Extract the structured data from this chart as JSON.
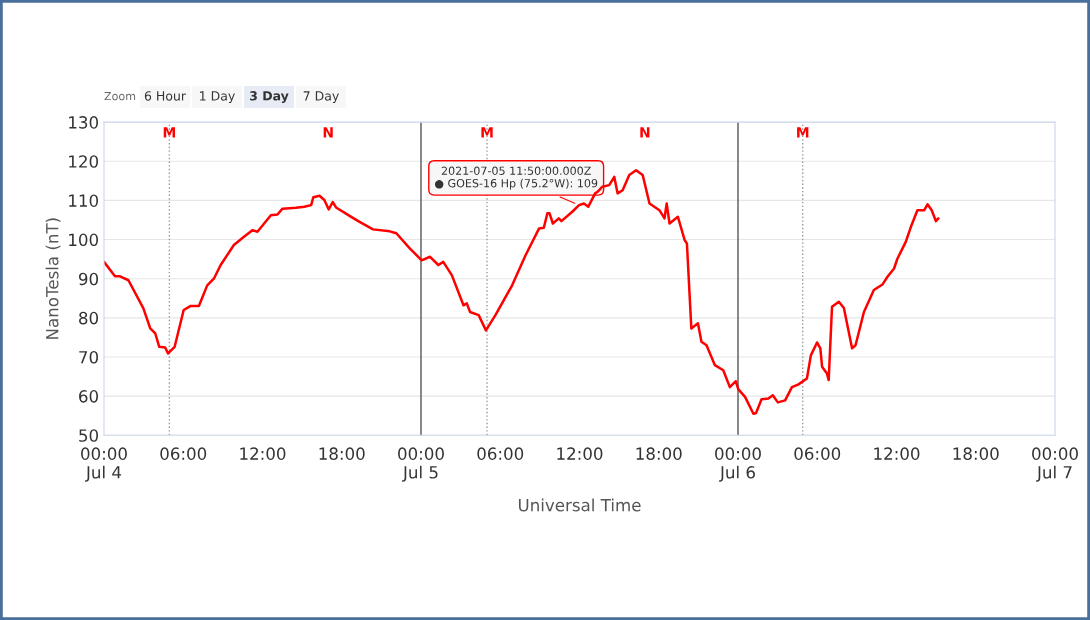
{
  "chart_data": {
    "type": "line",
    "xlabel": "Universal Time",
    "ylabel": "NanoTesla (nT)",
    "x": [
      "2021-07-04T00:00",
      "2021-07-04T00:50",
      "2021-07-04T01:13",
      "2021-07-04T01:51",
      "2021-07-04T02:59",
      "2021-07-04T03:30",
      "2021-07-04T03:53",
      "2021-07-04T04:11",
      "2021-07-04T04:38",
      "2021-07-04T04:51",
      "2021-07-04T05:21",
      "2021-07-04T06:02",
      "2021-07-04T06:32",
      "2021-07-04T07:11",
      "2021-07-04T07:49",
      "2021-07-04T08:19",
      "2021-07-04T08:50",
      "2021-07-04T09:50",
      "2021-07-04T10:36",
      "2021-07-04T11:14",
      "2021-07-04T11:37",
      "2021-07-04T12:38",
      "2021-07-04T13:08",
      "2021-07-04T13:31",
      "2021-07-04T14:32",
      "2021-07-04T15:10",
      "2021-07-04T15:41",
      "2021-07-04T15:51",
      "2021-07-04T16:19",
      "2021-07-04T16:41",
      "2021-07-04T17:01",
      "2021-07-04T17:19",
      "2021-07-04T17:34",
      "2021-07-04T18:43",
      "2021-07-04T19:21",
      "2021-07-04T20:22",
      "2021-07-04T21:38",
      "2021-07-04T22:08",
      "2021-07-04T23:10",
      "2021-07-05T00:03",
      "2021-07-05T00:41",
      "2021-07-05T01:19",
      "2021-07-05T01:41",
      "2021-07-05T02:20",
      "2021-07-05T03:13",
      "2021-07-05T03:28",
      "2021-07-05T03:43",
      "2021-07-05T04:22",
      "2021-07-05T04:55",
      "2021-07-05T05:38",
      "2021-07-05T06:54",
      "2021-07-05T07:55",
      "2021-07-05T08:56",
      "2021-07-05T09:18",
      "2021-07-05T09:34",
      "2021-07-05T09:44",
      "2021-07-05T09:59",
      "2021-07-05T10:26",
      "2021-07-05T10:38",
      "2021-07-05T11:27",
      "2021-07-05T11:58",
      "2021-07-05T12:20",
      "2021-07-05T12:40",
      "2021-07-05T13:11",
      "2021-07-05T13:22",
      "2021-07-05T13:44",
      "2021-07-05T14:15",
      "2021-07-05T14:38",
      "2021-07-05T14:53",
      "2021-07-05T15:16",
      "2021-07-05T15:46",
      "2021-07-05T16:17",
      "2021-07-05T16:47",
      "2021-07-05T17:18",
      "2021-07-05T18:03",
      "2021-07-05T18:26",
      "2021-07-05T18:36",
      "2021-07-05T18:49",
      "2021-07-05T19:27",
      "2021-07-05T19:58",
      "2021-07-05T20:08",
      "2021-07-05T20:28",
      "2021-07-05T20:58",
      "2021-07-05T21:14",
      "2021-07-05T21:37",
      "2021-07-05T22:15",
      "2021-07-05T22:53",
      "2021-07-05T23:23",
      "2021-07-05T23:50",
      "2021-07-06T00:01",
      "2021-07-06T00:32",
      "2021-07-06T01:10",
      "2021-07-06T01:22",
      "2021-07-06T01:47",
      "2021-07-06T02:18",
      "2021-07-06T02:38",
      "2021-07-06T03:01",
      "2021-07-06T03:34",
      "2021-07-06T04:05",
      "2021-07-06T04:35",
      "2021-07-06T05:13",
      "2021-07-06T05:31",
      "2021-07-06T05:59",
      "2021-07-06T06:14",
      "2021-07-06T06:22",
      "2021-07-06T06:44",
      "2021-07-06T06:52",
      "2021-07-06T07:07",
      "2021-07-06T07:38",
      "2021-07-06T08:01",
      "2021-07-06T08:38",
      "2021-07-06T08:54",
      "2021-07-06T09:32",
      "2021-07-06T10:17",
      "2021-07-06T10:56",
      "2021-07-06T11:19",
      "2021-07-06T11:49",
      "2021-07-06T12:04",
      "2021-07-06T12:42",
      "2021-07-06T13:05",
      "2021-07-06T13:35",
      "2021-07-06T14:06",
      "2021-07-06T14:21",
      "2021-07-06T14:40",
      "2021-07-06T14:59",
      "2021-07-06T15:10"
    ],
    "series": [
      {
        "color": "#ff0000",
        "values": [
          94.3,
          90.6,
          90.6,
          89.6,
          82.4,
          77.3,
          76.0,
          72.6,
          72.4,
          70.9,
          72.6,
          82.0,
          83.0,
          83.0,
          88.3,
          90.0,
          93.5,
          98.6,
          100.7,
          102.4,
          102.0,
          106.2,
          106.4,
          107.9,
          108.1,
          108.4,
          108.8,
          110.8,
          111.2,
          110.1,
          107.7,
          109.6,
          108.2,
          105.8,
          104.5,
          102.6,
          102.1,
          101.6,
          97.7,
          94.7,
          95.6,
          93.5,
          94.3,
          90.9,
          83.2,
          83.7,
          81.5,
          80.7,
          76.8,
          80.7,
          88.3,
          96.0,
          102.8,
          103.0,
          106.7,
          106.7,
          104.1,
          105.4,
          104.7,
          107.1,
          108.8,
          109.2,
          108.4,
          111.8,
          112.2,
          113.5,
          113.9,
          116.0,
          111.8,
          112.6,
          116.5,
          117.7,
          116.5,
          109.2,
          107.5,
          105.4,
          109.2,
          104.1,
          105.8,
          99.8,
          99.0,
          77.3,
          78.6,
          73.9,
          73.0,
          67.9,
          66.6,
          62.3,
          63.8,
          61.8,
          59.8,
          55.5,
          55.7,
          59.2,
          59.4,
          60.2,
          58.4,
          58.9,
          62.3,
          63.0,
          64.5,
          70.4,
          73.7,
          72.2,
          67.5,
          65.8,
          64.1,
          82.8,
          84.1,
          82.5,
          72.2,
          73.0,
          81.5,
          87.1,
          88.5,
          90.5,
          92.6,
          95.1,
          99.4,
          103.2,
          107.5,
          107.5,
          109.0,
          107.5,
          104.7,
          105.4
        ]
      }
    ],
    "xlim": [
      "2021-07-04T00:00",
      "2021-07-07T00:00"
    ],
    "xticks": [
      {
        "value": "2021-07-04T00:00",
        "label": "00:00\nJul 4"
      },
      {
        "value": "2021-07-04T06:00",
        "label": "06:00"
      },
      {
        "value": "2021-07-04T12:00",
        "label": "12:00"
      },
      {
        "value": "2021-07-04T18:00",
        "label": "18:00"
      },
      {
        "value": "2021-07-05T00:00",
        "label": "00:00\nJul 5"
      },
      {
        "value": "2021-07-05T06:00",
        "label": "06:00"
      },
      {
        "value": "2021-07-05T12:00",
        "label": "12:00"
      },
      {
        "value": "2021-07-05T18:00",
        "label": "18:00"
      },
      {
        "value": "2021-07-06T00:00",
        "label": "00:00\nJul 6"
      },
      {
        "value": "2021-07-06T06:00",
        "label": "06:00"
      },
      {
        "value": "2021-07-06T12:00",
        "label": "12:00"
      },
      {
        "value": "2021-07-06T18:00",
        "label": "18:00"
      },
      {
        "value": "2021-07-07T00:00",
        "label": "00:00\nJul 7"
      }
    ],
    "ylim": [
      50,
      130
    ],
    "yticks": [
      50,
      60,
      70,
      80,
      90,
      100,
      110,
      120,
      130
    ],
    "grid": "y",
    "legend": false,
    "marker": "none",
    "line_style": "solid",
    "ref_lines": [
      {
        "axis": "x",
        "value": "2021-07-04T04:57",
        "label": "M",
        "color": "#999999",
        "line_style": "dotted"
      },
      {
        "axis": "x",
        "value": "2021-07-05T00:00",
        "color": "#555555",
        "line_style": "solid"
      },
      {
        "axis": "x",
        "value": "2021-07-05T05:00",
        "label": "M",
        "color": "#999999",
        "line_style": "dotted"
      },
      {
        "axis": "x",
        "value": "2021-07-06T00:00",
        "color": "#555555",
        "line_style": "solid"
      },
      {
        "axis": "x",
        "value": "2021-07-06T04:54",
        "label": "M",
        "color": "#999999",
        "line_style": "dotted"
      }
    ],
    "annotations": [
      "N",
      "N",
      {
        "text": "2021-07-05 11:50:00.000Z\n● GOES-16 Hp (75.2°W): 109",
        "x": "2021-07-05T11:50",
        "y": 109
      },
      "Zoom",
      "6 Hour",
      "1 Day",
      "3 Day",
      "7 Day"
    ]
  }
}
